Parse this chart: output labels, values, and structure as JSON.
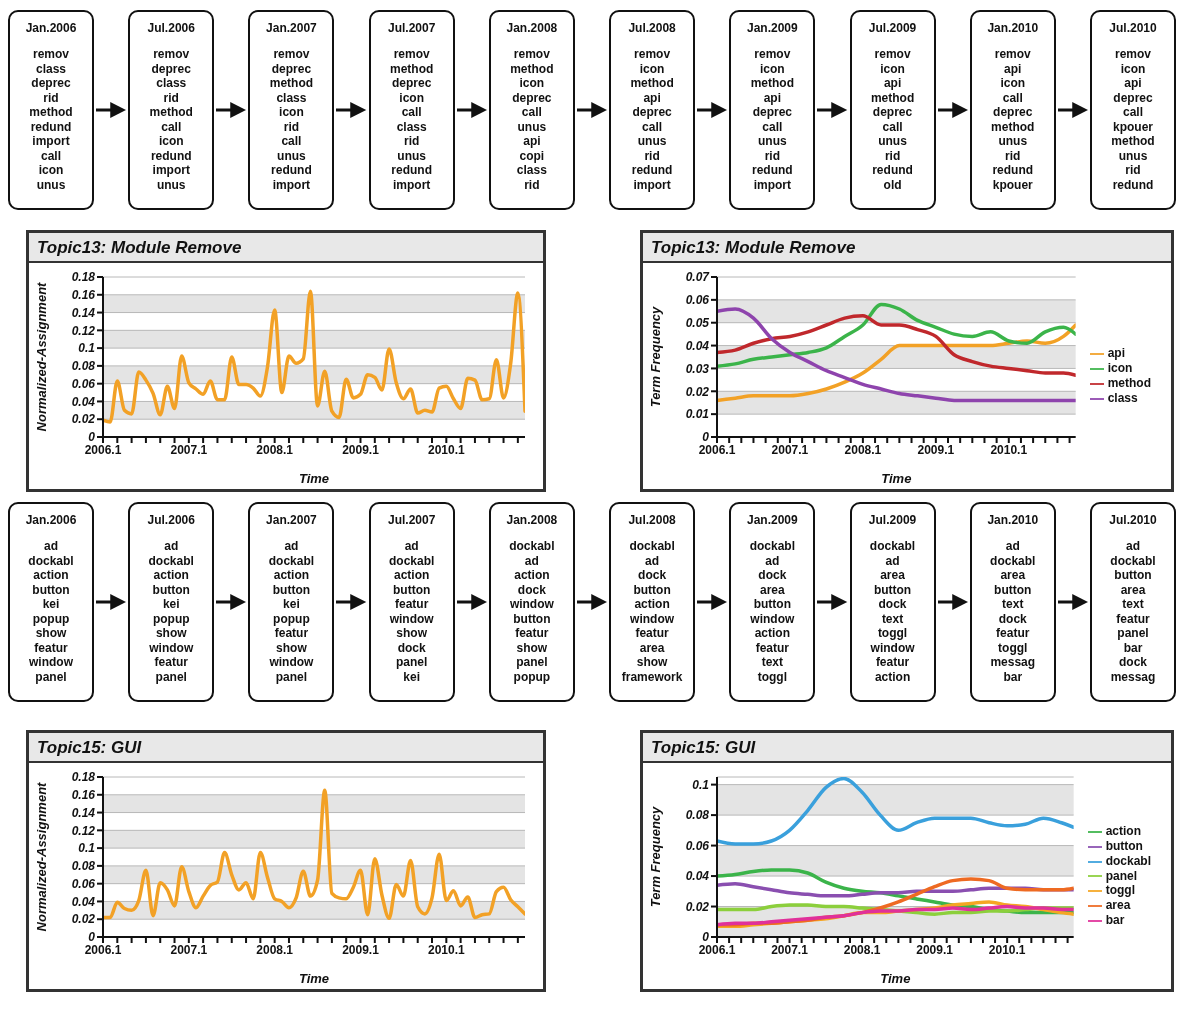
{
  "chart_data": [
    {
      "type": "other",
      "categories": [
        "Jan.2006",
        "Jul.2006",
        "Jan.2007",
        "Jul.2007",
        "Jan.2008",
        "Jul.2008",
        "Jan.2009",
        "Jul.2009",
        "Jan.2010",
        "Jul.2010"
      ],
      "annotations": [
        "remov\nclass\ndeprec\nrid\nmethod\nredund\nimport\ncall\nicon\nunus",
        "remov\ndeprec\nclass\nrid\nmethod\ncall\nicon\nredund\nimport\nunus",
        "remov\ndeprec\nmethod\nclass\nicon\nrid\ncall\nunus\nredund\nimport",
        "remov\nmethod\ndeprec\nicon\ncall\nclass\nrid\nunus\nredund\nimport",
        "remov\nmethod\nicon\ndeprec\ncall\nunus\napi\ncopi\nclass\nrid",
        "remov\nicon\nmethod\napi\ndeprec\ncall\nunus\nrid\nredund\nimport",
        "remov\nicon\nmethod\napi\ndeprec\ncall\nunus\nrid\nredund\nimport",
        "remov\nicon\napi\nmethod\ndeprec\ncall\nunus\nrid\nredund\nold",
        "remov\napi\nicon\ncall\ndeprec\nmethod\nunus\nrid\nredund\nkpouer",
        "remov\nicon\napi\ndeprec\ncall\nkpouer\nmethod\nunus\nrid\nredund"
      ]
    },
    {
      "type": "line",
      "title": "Topic13: Module Remove",
      "xlabel": "Time",
      "ylabel": "Normalized-Assignment",
      "grid": "y",
      "marker": "none",
      "x": [
        "2006-01",
        "2006-02",
        "2006-03",
        "2006-04",
        "2006-05",
        "2006-06",
        "2006-07",
        "2006-08",
        "2006-09",
        "2006-10",
        "2006-11",
        "2006-12",
        "2007-01",
        "2007-02",
        "2007-03",
        "2007-04",
        "2007-05",
        "2007-06",
        "2007-07",
        "2007-08",
        "2007-09",
        "2007-10",
        "2007-11",
        "2007-12",
        "2008-01",
        "2008-02",
        "2008-03",
        "2008-04",
        "2008-05",
        "2008-06",
        "2008-07",
        "2008-08",
        "2008-09",
        "2008-10",
        "2008-11",
        "2008-12",
        "2009-01",
        "2009-02",
        "2009-03",
        "2009-04",
        "2009-05",
        "2009-06",
        "2009-07",
        "2009-08",
        "2009-09",
        "2009-10",
        "2009-11",
        "2009-12",
        "2010-01",
        "2010-02",
        "2010-03",
        "2010-04",
        "2010-05",
        "2010-06",
        "2010-07",
        "2010-08",
        "2010-09",
        "2010-10",
        "2010-11",
        "2010-12"
      ],
      "series": [
        {
          "color": "#f2a126",
          "values": [
            0.019,
            0.017,
            0.063,
            0.03,
            0.026,
            0.073,
            0.064,
            0.049,
            0.025,
            0.057,
            0.032,
            0.091,
            0.061,
            0.054,
            0.048,
            0.063,
            0.042,
            0.042,
            0.09,
            0.059,
            0.059,
            0.055,
            0.046,
            0.079,
            0.143,
            0.05,
            0.091,
            0.083,
            0.088,
            0.164,
            0.035,
            0.074,
            0.029,
            0.022,
            0.065,
            0.044,
            0.048,
            0.07,
            0.067,
            0.053,
            0.099,
            0.061,
            0.043,
            0.054,
            0.027,
            0.03,
            0.028,
            0.055,
            0.057,
            0.043,
            0.032,
            0.066,
            0.064,
            0.042,
            0.043,
            0.087,
            0.044,
            0.083,
            0.162,
            0.029
          ]
        }
      ],
      "xlim": [
        "2006-01",
        "2010-12"
      ],
      "ylim": [
        0,
        0.18
      ],
      "yticks": [
        0,
        0.02,
        0.04,
        0.06,
        0.08,
        0.1,
        0.12,
        0.14,
        0.16,
        0.18
      ],
      "xticks": [
        {
          "value": "2006-01",
          "label": "2006.1"
        },
        {
          "value": "2006-03",
          "label": null
        },
        {
          "value": "2006-05",
          "label": null
        },
        {
          "value": "2006-07",
          "label": null
        },
        {
          "value": "2006-09",
          "label": null
        },
        {
          "value": "2006-11",
          "label": null
        },
        {
          "value": "2007-01",
          "label": "2007.1"
        },
        {
          "value": "2007-03",
          "label": null
        },
        {
          "value": "2007-05",
          "label": null
        },
        {
          "value": "2007-07",
          "label": null
        },
        {
          "value": "2007-09",
          "label": null
        },
        {
          "value": "2007-11",
          "label": null
        },
        {
          "value": "2008-01",
          "label": "2008.1"
        },
        {
          "value": "2008-03",
          "label": null
        },
        {
          "value": "2008-05",
          "label": null
        },
        {
          "value": "2008-07",
          "label": null
        },
        {
          "value": "2008-09",
          "label": null
        },
        {
          "value": "2008-11",
          "label": null
        },
        {
          "value": "2009-01",
          "label": "2009.1"
        },
        {
          "value": "2009-03",
          "label": null
        },
        {
          "value": "2009-05",
          "label": null
        },
        {
          "value": "2009-07",
          "label": null
        },
        {
          "value": "2009-09",
          "label": null
        },
        {
          "value": "2009-11",
          "label": null
        },
        {
          "value": "2010-01",
          "label": "2010.1"
        },
        {
          "value": "2010-03",
          "label": null
        },
        {
          "value": "2010-05",
          "label": null
        },
        {
          "value": "2010-07",
          "label": null
        },
        {
          "value": "2010-09",
          "label": null
        },
        {
          "value": "2010-11",
          "label": null
        }
      ]
    },
    {
      "type": "line",
      "title": "Topic13: Module Remove",
      "xlabel": "Time",
      "ylabel": "Term Frequency",
      "grid": "y",
      "marker": "none",
      "legend": "right",
      "x": [
        "2006-01",
        "2006-04",
        "2006-07",
        "2006-10",
        "2007-01",
        "2007-04",
        "2007-07",
        "2007-10",
        "2008-01",
        "2008-04",
        "2008-07",
        "2008-10",
        "2009-01",
        "2009-04",
        "2009-07",
        "2009-10",
        "2010-01",
        "2010-04",
        "2010-07",
        "2010-10",
        "2010-12"
      ],
      "series": [
        {
          "name": "api",
          "color": "#f2a126",
          "values": [
            0.016,
            0.017,
            0.018,
            0.018,
            0.018,
            0.019,
            0.021,
            0.024,
            0.028,
            0.034,
            0.04,
            0.04,
            0.04,
            0.04,
            0.04,
            0.04,
            0.041,
            0.042,
            0.041,
            0.044,
            0.049
          ]
        },
        {
          "name": "icon",
          "color": "#3bb44a",
          "values": [
            0.031,
            0.032,
            0.034,
            0.035,
            0.036,
            0.037,
            0.039,
            0.044,
            0.049,
            0.058,
            0.056,
            0.051,
            0.048,
            0.045,
            0.044,
            0.046,
            0.042,
            0.041,
            0.046,
            0.048,
            0.045
          ]
        },
        {
          "name": "method",
          "color": "#c0282c",
          "values": [
            0.037,
            0.038,
            0.041,
            0.043,
            0.044,
            0.046,
            0.049,
            0.052,
            0.053,
            0.049,
            0.049,
            0.047,
            0.044,
            0.036,
            0.033,
            0.031,
            0.03,
            0.029,
            0.028,
            0.028,
            0.027
          ]
        },
        {
          "name": "class",
          "color": "#8e44ad",
          "values": [
            0.055,
            0.056,
            0.052,
            0.043,
            0.037,
            0.033,
            0.029,
            0.026,
            0.023,
            0.021,
            0.019,
            0.018,
            0.017,
            0.016,
            0.016,
            0.016,
            0.016,
            0.016,
            0.016,
            0.016,
            0.016
          ]
        }
      ],
      "xlim": [
        "2006-01",
        "2010-12"
      ],
      "ylim": [
        0,
        0.07
      ],
      "yticks": [
        0,
        0.01,
        0.02,
        0.03,
        0.04,
        0.05,
        0.06,
        0.07
      ],
      "xticks": [
        {
          "value": "2006-01",
          "label": "2006.1"
        },
        {
          "value": "2006-03",
          "label": null
        },
        {
          "value": "2006-05",
          "label": null
        },
        {
          "value": "2006-07",
          "label": null
        },
        {
          "value": "2006-09",
          "label": null
        },
        {
          "value": "2006-11",
          "label": null
        },
        {
          "value": "2007-01",
          "label": "2007.1"
        },
        {
          "value": "2007-03",
          "label": null
        },
        {
          "value": "2007-05",
          "label": null
        },
        {
          "value": "2007-07",
          "label": null
        },
        {
          "value": "2007-09",
          "label": null
        },
        {
          "value": "2007-11",
          "label": null
        },
        {
          "value": "2008-01",
          "label": "2008.1"
        },
        {
          "value": "2008-03",
          "label": null
        },
        {
          "value": "2008-05",
          "label": null
        },
        {
          "value": "2008-07",
          "label": null
        },
        {
          "value": "2008-09",
          "label": null
        },
        {
          "value": "2008-11",
          "label": null
        },
        {
          "value": "2009-01",
          "label": "2009.1"
        },
        {
          "value": "2009-03",
          "label": null
        },
        {
          "value": "2009-05",
          "label": null
        },
        {
          "value": "2009-07",
          "label": null
        },
        {
          "value": "2009-09",
          "label": null
        },
        {
          "value": "2009-11",
          "label": null
        },
        {
          "value": "2010-01",
          "label": "2010.1"
        },
        {
          "value": "2010-03",
          "label": null
        },
        {
          "value": "2010-05",
          "label": null
        },
        {
          "value": "2010-07",
          "label": null
        },
        {
          "value": "2010-09",
          "label": null
        },
        {
          "value": "2010-11",
          "label": null
        }
      ]
    },
    {
      "type": "other",
      "categories": [
        "Jan.2006",
        "Jul.2006",
        "Jan.2007",
        "Jul.2007",
        "Jan.2008",
        "Jul.2008",
        "Jan.2009",
        "Jul.2009",
        "Jan.2010",
        "Jul.2010"
      ],
      "annotations": [
        "ad\ndockabl\naction\nbutton\nkei\npopup\nshow\nfeatur\nwindow\npanel",
        "ad\ndockabl\naction\nbutton\nkei\npopup\nshow\nwindow\nfeatur\npanel",
        "ad\ndockabl\naction\nbutton\nkei\npopup\nfeatur\nshow\nwindow\npanel",
        "ad\ndockabl\naction\nbutton\nfeatur\nwindow\nshow\ndock\npanel\nkei",
        "dockabl\nad\naction\ndock\nwindow\nbutton\nfeatur\nshow\npanel\npopup",
        "dockabl\nad\ndock\nbutton\naction\nwindow\nfeatur\narea\nshow\nframework",
        "dockabl\nad\ndock\narea\nbutton\nwindow\naction\nfeatur\ntext\ntoggl",
        "dockabl\nad\narea\nbutton\ndock\ntext\ntoggl\nwindow\nfeatur\naction",
        "ad\ndockabl\narea\nbutton\ntext\ndock\nfeatur\ntoggl\nmessag\nbar",
        "ad\ndockabl\nbutton\narea\ntext\nfeatur\npanel\nbar\ndock\nmessag"
      ]
    },
    {
      "type": "line",
      "title": "Topic15: GUI",
      "xlabel": "Time",
      "ylabel": "Normalized-Assignment",
      "grid": "y",
      "marker": "none",
      "x": [
        "2006-01",
        "2006-02",
        "2006-03",
        "2006-04",
        "2006-05",
        "2006-06",
        "2006-07",
        "2006-08",
        "2006-09",
        "2006-10",
        "2006-11",
        "2006-12",
        "2007-01",
        "2007-02",
        "2007-03",
        "2007-04",
        "2007-05",
        "2007-06",
        "2007-07",
        "2007-08",
        "2007-09",
        "2007-10",
        "2007-11",
        "2007-12",
        "2008-01",
        "2008-02",
        "2008-03",
        "2008-04",
        "2008-05",
        "2008-06",
        "2008-07",
        "2008-08",
        "2008-09",
        "2008-10",
        "2008-11",
        "2008-12",
        "2009-01",
        "2009-02",
        "2009-03",
        "2009-04",
        "2009-05",
        "2009-06",
        "2009-07",
        "2009-08",
        "2009-09",
        "2009-10",
        "2009-11",
        "2009-12",
        "2010-01",
        "2010-02",
        "2010-03",
        "2010-04",
        "2010-05",
        "2010-06",
        "2010-07",
        "2010-08",
        "2010-09",
        "2010-10",
        "2010-11",
        "2010-12"
      ],
      "series": [
        {
          "color": "#f2a126",
          "values": [
            0.022,
            0.022,
            0.039,
            0.032,
            0.03,
            0.041,
            0.075,
            0.024,
            0.061,
            0.053,
            0.035,
            0.079,
            0.051,
            0.033,
            0.046,
            0.058,
            0.062,
            0.095,
            0.07,
            0.053,
            0.061,
            0.043,
            0.095,
            0.067,
            0.043,
            0.04,
            0.033,
            0.044,
            0.074,
            0.046,
            0.064,
            0.165,
            0.049,
            0.044,
            0.043,
            0.056,
            0.075,
            0.025,
            0.088,
            0.047,
            0.021,
            0.059,
            0.046,
            0.086,
            0.034,
            0.026,
            0.044,
            0.093,
            0.041,
            0.052,
            0.035,
            0.045,
            0.022,
            0.025,
            0.026,
            0.051,
            0.056,
            0.042,
            0.034,
            0.026
          ]
        }
      ],
      "xlim": [
        "2006-01",
        "2010-12"
      ],
      "ylim": [
        0,
        0.18
      ],
      "yticks": [
        0,
        0.02,
        0.04,
        0.06,
        0.08,
        0.1,
        0.12,
        0.14,
        0.16,
        0.18
      ],
      "xticks": [
        {
          "value": "2006-01",
          "label": "2006.1"
        },
        {
          "value": "2006-03",
          "label": null
        },
        {
          "value": "2006-05",
          "label": null
        },
        {
          "value": "2006-07",
          "label": null
        },
        {
          "value": "2006-09",
          "label": null
        },
        {
          "value": "2006-11",
          "label": null
        },
        {
          "value": "2007-01",
          "label": "2007.1"
        },
        {
          "value": "2007-03",
          "label": null
        },
        {
          "value": "2007-05",
          "label": null
        },
        {
          "value": "2007-07",
          "label": null
        },
        {
          "value": "2007-09",
          "label": null
        },
        {
          "value": "2007-11",
          "label": null
        },
        {
          "value": "2008-01",
          "label": "2008.1"
        },
        {
          "value": "2008-03",
          "label": null
        },
        {
          "value": "2008-05",
          "label": null
        },
        {
          "value": "2008-07",
          "label": null
        },
        {
          "value": "2008-09",
          "label": null
        },
        {
          "value": "2008-11",
          "label": null
        },
        {
          "value": "2009-01",
          "label": "2009.1"
        },
        {
          "value": "2009-03",
          "label": null
        },
        {
          "value": "2009-05",
          "label": null
        },
        {
          "value": "2009-07",
          "label": null
        },
        {
          "value": "2009-09",
          "label": null
        },
        {
          "value": "2009-11",
          "label": null
        },
        {
          "value": "2010-01",
          "label": "2010.1"
        },
        {
          "value": "2010-03",
          "label": null
        },
        {
          "value": "2010-05",
          "label": null
        },
        {
          "value": "2010-07",
          "label": null
        },
        {
          "value": "2010-09",
          "label": null
        },
        {
          "value": "2010-11",
          "label": null
        }
      ]
    },
    {
      "type": "line",
      "title": "Topic15: GUI",
      "xlabel": "Time",
      "ylabel": "Term Frequency",
      "grid": "y",
      "marker": "none",
      "legend": "right",
      "x": [
        "2006-01",
        "2006-04",
        "2006-07",
        "2006-10",
        "2007-01",
        "2007-04",
        "2007-07",
        "2007-10",
        "2008-01",
        "2008-04",
        "2008-07",
        "2008-10",
        "2009-01",
        "2009-04",
        "2009-07",
        "2009-10",
        "2010-01",
        "2010-04",
        "2010-07",
        "2010-10",
        "2010-12"
      ],
      "series": [
        {
          "name": "action",
          "color": "#3bb44a",
          "values": [
            0.04,
            0.041,
            0.043,
            0.044,
            0.044,
            0.042,
            0.036,
            0.032,
            0.03,
            0.029,
            0.027,
            0.025,
            0.023,
            0.021,
            0.02,
            0.018,
            0.017,
            0.016,
            0.016,
            0.016,
            0.016
          ]
        },
        {
          "name": "button",
          "color": "#8a4fb0",
          "values": [
            0.034,
            0.035,
            0.033,
            0.031,
            0.029,
            0.028,
            0.027,
            0.027,
            0.028,
            0.029,
            0.029,
            0.03,
            0.03,
            0.03,
            0.031,
            0.032,
            0.032,
            0.032,
            0.031,
            0.031,
            0.031
          ]
        },
        {
          "name": "dockabl",
          "color": "#3aa0dc",
          "values": [
            0.063,
            0.061,
            0.061,
            0.063,
            0.07,
            0.083,
            0.098,
            0.104,
            0.095,
            0.08,
            0.07,
            0.075,
            0.078,
            0.078,
            0.078,
            0.075,
            0.073,
            0.074,
            0.078,
            0.075,
            0.072
          ]
        },
        {
          "name": "panel",
          "color": "#8ccf3c",
          "values": [
            0.018,
            0.018,
            0.018,
            0.02,
            0.021,
            0.021,
            0.02,
            0.02,
            0.019,
            0.018,
            0.017,
            0.016,
            0.015,
            0.016,
            0.016,
            0.017,
            0.017,
            0.018,
            0.019,
            0.019,
            0.019
          ]
        },
        {
          "name": "toggl",
          "color": "#f5a623",
          "values": [
            0.007,
            0.007,
            0.008,
            0.009,
            0.01,
            0.011,
            0.012,
            0.014,
            0.016,
            0.016,
            0.017,
            0.018,
            0.019,
            0.021,
            0.022,
            0.023,
            0.021,
            0.02,
            0.018,
            0.016,
            0.015
          ]
        },
        {
          "name": "area",
          "color": "#ee6a22",
          "values": [
            0.008,
            0.008,
            0.009,
            0.009,
            0.01,
            0.011,
            0.013,
            0.014,
            0.016,
            0.019,
            0.023,
            0.028,
            0.033,
            0.037,
            0.038,
            0.037,
            0.032,
            0.031,
            0.031,
            0.031,
            0.032
          ]
        },
        {
          "name": "bar",
          "color": "#e0309a",
          "values": [
            0.008,
            0.009,
            0.009,
            0.01,
            0.011,
            0.012,
            0.013,
            0.014,
            0.016,
            0.017,
            0.017,
            0.018,
            0.018,
            0.019,
            0.018,
            0.019,
            0.02,
            0.019,
            0.019,
            0.018,
            0.018
          ]
        }
      ],
      "xlim": [
        "2006-01",
        "2010-12"
      ],
      "ylim": [
        0,
        0.105
      ],
      "yticks": [
        0,
        0.02,
        0.04,
        0.06,
        0.08,
        0.1
      ],
      "xticks": [
        {
          "value": "2006-01",
          "label": "2006.1"
        },
        {
          "value": "2006-03",
          "label": null
        },
        {
          "value": "2006-05",
          "label": null
        },
        {
          "value": "2006-07",
          "label": null
        },
        {
          "value": "2006-09",
          "label": null
        },
        {
          "value": "2006-11",
          "label": null
        },
        {
          "value": "2007-01",
          "label": "2007.1"
        },
        {
          "value": "2007-03",
          "label": null
        },
        {
          "value": "2007-05",
          "label": null
        },
        {
          "value": "2007-07",
          "label": null
        },
        {
          "value": "2007-09",
          "label": null
        },
        {
          "value": "2007-11",
          "label": null
        },
        {
          "value": "2008-01",
          "label": "2008.1"
        },
        {
          "value": "2008-03",
          "label": null
        },
        {
          "value": "2008-05",
          "label": null
        },
        {
          "value": "2008-07",
          "label": null
        },
        {
          "value": "2008-09",
          "label": null
        },
        {
          "value": "2008-11",
          "label": null
        },
        {
          "value": "2009-01",
          "label": "2009.1"
        },
        {
          "value": "2009-03",
          "label": null
        },
        {
          "value": "2009-05",
          "label": null
        },
        {
          "value": "2009-07",
          "label": null
        },
        {
          "value": "2009-09",
          "label": null
        },
        {
          "value": "2009-11",
          "label": null
        },
        {
          "value": "2010-01",
          "label": "2010.1"
        },
        {
          "value": "2010-03",
          "label": null
        },
        {
          "value": "2010-05",
          "label": null
        },
        {
          "value": "2010-07",
          "label": null
        },
        {
          "value": "2010-09",
          "label": null
        },
        {
          "value": "2010-11",
          "label": null
        }
      ]
    }
  ]
}
